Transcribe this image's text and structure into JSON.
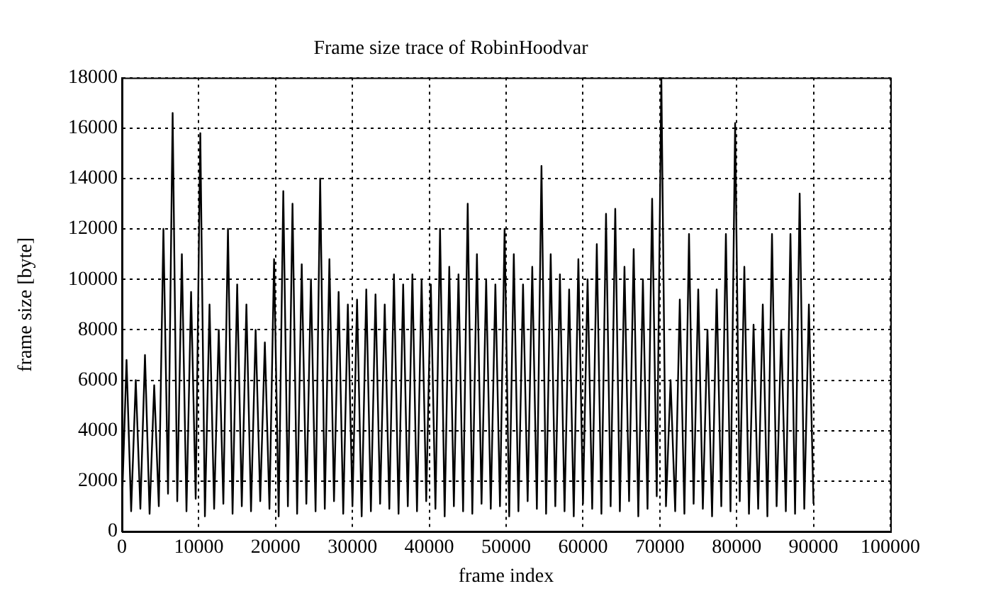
{
  "chart_data": {
    "type": "line",
    "title": "Frame size trace of RobinHoodvar",
    "xlabel": "frame index",
    "ylabel": "frame size [byte]",
    "xlim": [
      0,
      100000
    ],
    "xticks": [
      0,
      10000,
      20000,
      30000,
      40000,
      50000,
      60000,
      70000,
      80000,
      90000,
      100000
    ],
    "ylim": [
      0,
      18000
    ],
    "yticks": [
      0,
      2000,
      4000,
      6000,
      8000,
      10000,
      12000,
      14000,
      16000,
      18000
    ],
    "grid": true,
    "legend": false,
    "marker": "none",
    "line_style": "solid",
    "series": [
      {
        "color": "#000000",
        "x": [
          0,
          600,
          1200,
          1800,
          2400,
          3000,
          3600,
          4200,
          4800,
          5400,
          6000,
          6600,
          7200,
          7800,
          8400,
          9000,
          9600,
          10200,
          10800,
          11400,
          12000,
          12600,
          13200,
          13800,
          14400,
          15000,
          15600,
          16200,
          16800,
          17400,
          18000,
          18600,
          19200,
          19800,
          20400,
          21000,
          21600,
          22200,
          22800,
          23400,
          24000,
          24600,
          25200,
          25800,
          26400,
          27000,
          27600,
          28200,
          28800,
          29400,
          30000,
          30600,
          31200,
          31800,
          32400,
          33000,
          33600,
          34200,
          34800,
          35400,
          36000,
          36600,
          37200,
          37800,
          38400,
          39000,
          39600,
          40200,
          40800,
          41400,
          42000,
          42600,
          43200,
          43800,
          44400,
          45000,
          45600,
          46200,
          46800,
          47400,
          48000,
          48600,
          49200,
          49800,
          50400,
          51000,
          51600,
          52200,
          52800,
          53400,
          54000,
          54600,
          55200,
          55800,
          56400,
          57000,
          57600,
          58200,
          58800,
          59400,
          60000,
          60600,
          61200,
          61800,
          62400,
          63000,
          63600,
          64200,
          64800,
          65400,
          66000,
          66600,
          67200,
          67800,
          68400,
          69000,
          69600,
          70200,
          70800,
          71400,
          72000,
          72600,
          73200,
          73800,
          74400,
          75000,
          75600,
          76200,
          76800,
          77400,
          78000,
          78600,
          79200,
          79800,
          80400,
          81000,
          81600,
          82200,
          82800,
          83400,
          84000,
          84600,
          85200,
          85800,
          86400,
          87000,
          87600,
          88200,
          88800,
          89400,
          90000
        ],
        "values": [
          1000,
          6800,
          800,
          6000,
          900,
          7000,
          700,
          5800,
          1000,
          12000,
          1500,
          16600,
          1200,
          11000,
          800,
          9500,
          1300,
          15800,
          600,
          9000,
          900,
          8000,
          1100,
          12000,
          700,
          9800,
          1000,
          9000,
          800,
          8000,
          1200,
          7500,
          900,
          10800,
          600,
          13500,
          1000,
          13000,
          700,
          10600,
          1100,
          10000,
          800,
          14000,
          900,
          10800,
          1200,
          9500,
          700,
          9000,
          1000,
          9200,
          600,
          9600,
          800,
          9400,
          1100,
          9000,
          900,
          10200,
          700,
          9800,
          1000,
          10200,
          800,
          10000,
          1200,
          9800,
          900,
          12000,
          600,
          10500,
          1000,
          10200,
          800,
          13000,
          700,
          11000,
          1100,
          10000,
          900,
          9800,
          1000,
          12000,
          600,
          11000,
          800,
          9800,
          1200,
          10500,
          900,
          14500,
          700,
          11000,
          1000,
          10200,
          800,
          9600,
          600,
          10800,
          1100,
          10000,
          900,
          11400,
          700,
          12600,
          1000,
          12800,
          800,
          10500,
          1200,
          11200,
          600,
          10000,
          900,
          13200,
          1400,
          18000,
          1000,
          6000,
          800,
          9200,
          700,
          11800,
          1100,
          9600,
          900,
          8000,
          600,
          9600,
          1000,
          11800,
          800,
          16200,
          1200,
          10500,
          700,
          8200,
          900,
          9000,
          600,
          11800,
          1000,
          8000,
          800,
          11800,
          700,
          13400,
          900,
          9000,
          1100
        ]
      }
    ]
  }
}
